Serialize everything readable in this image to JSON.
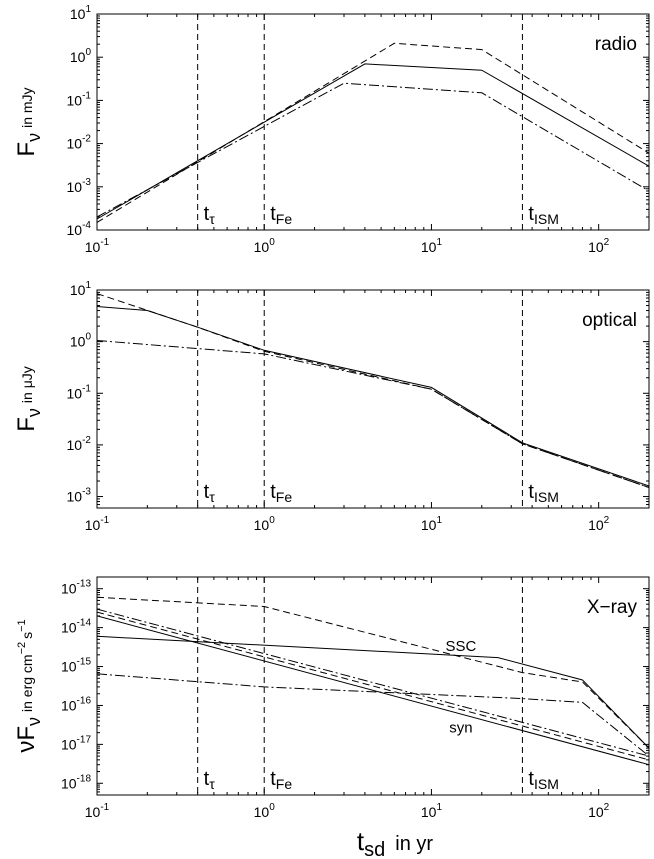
{
  "chart_data": [
    {
      "type": "line",
      "panel_label": "radio",
      "xscale": "log",
      "yscale": "log",
      "xlim": [
        0.1,
        200
      ],
      "ylim": [
        0.0001,
        10
      ],
      "x_ticks": [
        {
          "base": "10",
          "exp": "-1",
          "value": 0.1
        },
        {
          "base": "10",
          "exp": "0",
          "value": 1
        },
        {
          "base": "10",
          "exp": "1",
          "value": 10
        },
        {
          "base": "10",
          "exp": "2",
          "value": 100
        }
      ],
      "y_ticks": [
        {
          "base": "10",
          "exp": "-4",
          "value": 0.0001
        },
        {
          "base": "10",
          "exp": "-3",
          "value": 0.001
        },
        {
          "base": "10",
          "exp": "-2",
          "value": 0.01
        },
        {
          "base": "10",
          "exp": "-1",
          "value": 0.1
        },
        {
          "base": "10",
          "exp": "0",
          "value": 1
        },
        {
          "base": "10",
          "exp": "1",
          "value": 10
        }
      ],
      "ylabel": {
        "main": "F",
        "sub": "ν",
        "unit": "in mJy"
      },
      "series": [
        {
          "style": "solid",
          "x": [
            0.1,
            4,
            20,
            200
          ],
          "y": [
            0.00018,
            0.7,
            0.5,
            0.003
          ]
        },
        {
          "style": "dashed",
          "x": [
            0.1,
            6,
            20,
            200
          ],
          "y": [
            0.00015,
            2.1,
            1.5,
            0.006
          ]
        },
        {
          "style": "dashdot",
          "x": [
            0.1,
            3,
            20,
            200
          ],
          "y": [
            0.0002,
            0.25,
            0.15,
            0.0008
          ]
        }
      ],
      "vlines": [
        {
          "x": 0.4,
          "label": "t",
          "sub": "τ"
        },
        {
          "x": 1.0,
          "label": "t",
          "sub": "Fe"
        },
        {
          "x": 35,
          "label": "t",
          "sub": "ISM"
        }
      ]
    },
    {
      "type": "line",
      "panel_label": "optical",
      "xscale": "log",
      "yscale": "log",
      "xlim": [
        0.1,
        200
      ],
      "ylim": [
        0.0006,
        10
      ],
      "x_ticks": [
        {
          "base": "10",
          "exp": "-1",
          "value": 0.1
        },
        {
          "base": "10",
          "exp": "0",
          "value": 1
        },
        {
          "base": "10",
          "exp": "1",
          "value": 10
        },
        {
          "base": "10",
          "exp": "2",
          "value": 100
        }
      ],
      "y_ticks": [
        {
          "base": "10",
          "exp": "-3",
          "value": 0.001
        },
        {
          "base": "10",
          "exp": "-2",
          "value": 0.01
        },
        {
          "base": "10",
          "exp": "-1",
          "value": 0.1
        },
        {
          "base": "10",
          "exp": "0",
          "value": 1
        },
        {
          "base": "10",
          "exp": "1",
          "value": 10
        }
      ],
      "ylabel": {
        "main": "F",
        "sub": "ν",
        "unit": "in μJy"
      },
      "series": [
        {
          "style": "solid",
          "x": [
            0.1,
            0.2,
            0.4,
            1,
            10,
            35,
            200
          ],
          "y": [
            4.8,
            4.0,
            1.9,
            0.68,
            0.13,
            0.011,
            0.0016
          ]
        },
        {
          "style": "dashed",
          "x": [
            0.1,
            0.4,
            1,
            10,
            35,
            200
          ],
          "y": [
            8.5,
            1.9,
            0.65,
            0.12,
            0.0105,
            0.0015
          ]
        },
        {
          "style": "dashdot",
          "x": [
            0.1,
            1,
            10,
            35,
            200
          ],
          "y": [
            1.05,
            0.58,
            0.12,
            0.0105,
            0.0015
          ]
        }
      ],
      "vlines": [
        {
          "x": 0.4,
          "label": "t",
          "sub": "τ"
        },
        {
          "x": 1.0,
          "label": "t",
          "sub": "Fe"
        },
        {
          "x": 35,
          "label": "t",
          "sub": "ISM"
        }
      ]
    },
    {
      "type": "line",
      "panel_label": "X−ray",
      "xscale": "log",
      "yscale": "log",
      "xlim": [
        0.1,
        200
      ],
      "ylim": [
        5e-19,
        2e-13
      ],
      "x_ticks": [
        {
          "base": "10",
          "exp": "-1",
          "value": 0.1
        },
        {
          "base": "10",
          "exp": "0",
          "value": 1
        },
        {
          "base": "10",
          "exp": "1",
          "value": 10
        },
        {
          "base": "10",
          "exp": "2",
          "value": 100
        }
      ],
      "y_ticks": [
        {
          "base": "10",
          "exp": "-18",
          "value": 1e-18
        },
        {
          "base": "10",
          "exp": "-17",
          "value": 1e-17
        },
        {
          "base": "10",
          "exp": "-16",
          "value": 1e-16
        },
        {
          "base": "10",
          "exp": "-15",
          "value": 1e-15
        },
        {
          "base": "10",
          "exp": "-14",
          "value": 1e-14
        },
        {
          "base": "10",
          "exp": "-13",
          "value": 1e-13
        }
      ],
      "ylabel": {
        "main": "νF",
        "sub": "ν",
        "unit": "in erg cm",
        "unit_exp1": "−2",
        "unit_s": "s",
        "unit_exp2": "−1"
      },
      "series": [
        {
          "style": "solid",
          "x": [
            0.1,
            25,
            80,
            200
          ],
          "y": [
            6e-15,
            1.7e-15,
            4.5e-16,
            8e-18
          ]
        },
        {
          "style": "dashed",
          "x": [
            0.1,
            1,
            35,
            80,
            200
          ],
          "y": [
            6e-14,
            3.5e-14,
            7e-16,
            4e-16,
            8e-18
          ]
        },
        {
          "style": "dashdot",
          "x": [
            0.1,
            1,
            35,
            80,
            200
          ],
          "y": [
            6.5e-16,
            3e-16,
            1.5e-16,
            1.2e-16,
            5e-18
          ]
        },
        {
          "style": "solid",
          "x": [
            0.1,
            200
          ],
          "y": [
            2e-14,
            3e-18
          ]
        },
        {
          "style": "dashed",
          "x": [
            0.1,
            200
          ],
          "y": [
            2.5e-14,
            4e-18
          ]
        },
        {
          "style": "dashdot",
          "x": [
            0.1,
            200
          ],
          "y": [
            3e-14,
            5e-18
          ]
        }
      ],
      "annotations": [
        {
          "text": "SSC",
          "x": 15,
          "y": 2.5e-15
        },
        {
          "text": "syn",
          "x": 15,
          "y": 2e-17
        }
      ],
      "vlines": [
        {
          "x": 0.4,
          "label": "t",
          "sub": "τ"
        },
        {
          "x": 1.0,
          "label": "t",
          "sub": "Fe"
        },
        {
          "x": 35,
          "label": "t",
          "sub": "ISM"
        }
      ]
    }
  ],
  "xlabel": {
    "main": "t",
    "sub": "sd",
    "unit": "in  yr"
  }
}
